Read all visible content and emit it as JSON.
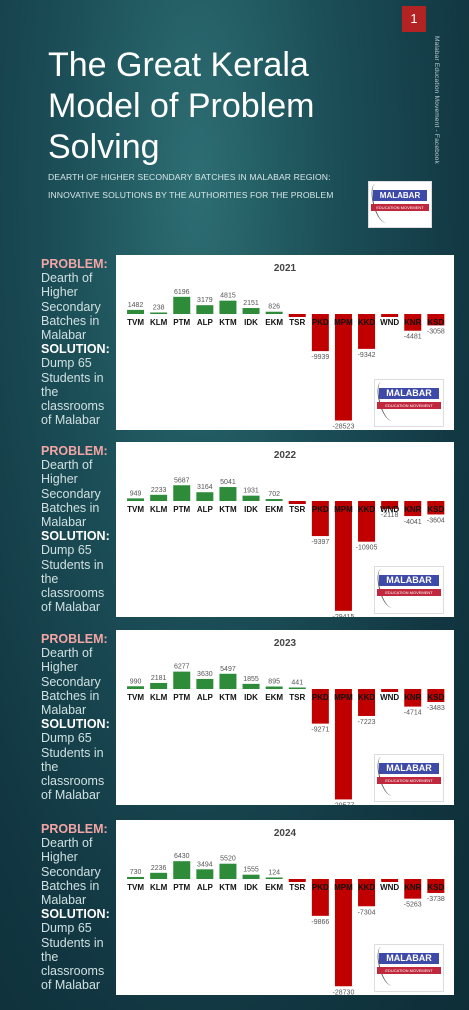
{
  "slide_number": "1",
  "title": "The Great Kerala Model of Problem Solving",
  "subtitle_line1": "DEARTH OF HIGHER SECONDARY BATCHES IN MALABAR REGION:",
  "subtitle_line2": "INNOVATIVE SOLUTIONS BY THE AUTHORITIES FOR THE PROBLEM",
  "vertical_caption": "Malabar Education Movement - Facebook",
  "logo": {
    "name": "MALABAR",
    "tagline": "EDUCATION MOVEMENT"
  },
  "side_text": {
    "problem_label": "PROBLEM:",
    "problem_text": "Dearth of Higher Secondary Batches in Malabar",
    "solution_label": "SOLUTION:",
    "solution_text": "Dump 65 Students in the classrooms of Malabar"
  },
  "colors": {
    "positive": "#2e8b3a",
    "negative": "#c00000"
  },
  "chart_data": [
    {
      "type": "bar",
      "title": "2021",
      "categories": [
        "TVM",
        "KLM",
        "PTM",
        "ALP",
        "KTM",
        "IDK",
        "EKM",
        "TSR",
        "PKD",
        "MPM",
        "KKD",
        "WND",
        "KNR",
        "KSD"
      ],
      "values": [
        1482,
        238,
        6196,
        3179,
        4815,
        2151,
        826,
        -300,
        -9939,
        -28523,
        -9342,
        -500,
        -4481,
        -3058
      ],
      "value_labels": [
        "1482",
        "238",
        "6196",
        "3179",
        "4815",
        "2151",
        "826",
        "",
        "-9939",
        "-28523",
        "-9342",
        "",
        "-4481",
        "-3058"
      ]
    },
    {
      "type": "bar",
      "title": "2022",
      "categories": [
        "TVM",
        "KLM",
        "PTM",
        "ALP",
        "KTM",
        "IDK",
        "EKM",
        "TSR",
        "PKD",
        "MPM",
        "KKD",
        "WND",
        "KNR",
        "KSD"
      ],
      "values": [
        949,
        2233,
        5687,
        3164,
        5041,
        1931,
        702,
        -300,
        -9397,
        -29415,
        -10905,
        -2118,
        -4041,
        -3604
      ],
      "value_labels": [
        "949",
        "2233",
        "5687",
        "3164",
        "5041",
        "1931",
        "702",
        "",
        "-9397",
        "-29415",
        "-10905",
        "-2118",
        "-4041",
        "-3604"
      ]
    },
    {
      "type": "bar",
      "title": "2023",
      "categories": [
        "TVM",
        "KLM",
        "PTM",
        "ALP",
        "KTM",
        "IDK",
        "EKM",
        "TSR",
        "PKD",
        "MPM",
        "KKD",
        "WND",
        "KNR",
        "KSD"
      ],
      "values": [
        990,
        2181,
        6277,
        3630,
        5497,
        1855,
        895,
        441,
        -9271,
        -29577,
        -7223,
        -400,
        -4714,
        -3483
      ],
      "value_labels": [
        "990",
        "2181",
        "6277",
        "3630",
        "5497",
        "1855",
        "895",
        "441",
        "-9271",
        "-29577",
        "-7223",
        "",
        "-4714",
        "-3483"
      ]
    },
    {
      "type": "bar",
      "title": "2024",
      "categories": [
        "TVM",
        "KLM",
        "PTM",
        "ALP",
        "KTM",
        "IDK",
        "EKM",
        "TSR",
        "PKD",
        "MPM",
        "KKD",
        "WND",
        "KNR",
        "KSD"
      ],
      "values": [
        730,
        2236,
        6430,
        3494,
        5520,
        1555,
        124,
        -300,
        -9866,
        -28730,
        -7304,
        -400,
        -5263,
        -3738
      ],
      "value_labels": [
        "730",
        "2236",
        "6430",
        "3494",
        "5520",
        "1555",
        "124",
        "",
        "-9866",
        "-28730",
        "-7304",
        "",
        "-5263",
        "-3738"
      ]
    }
  ]
}
